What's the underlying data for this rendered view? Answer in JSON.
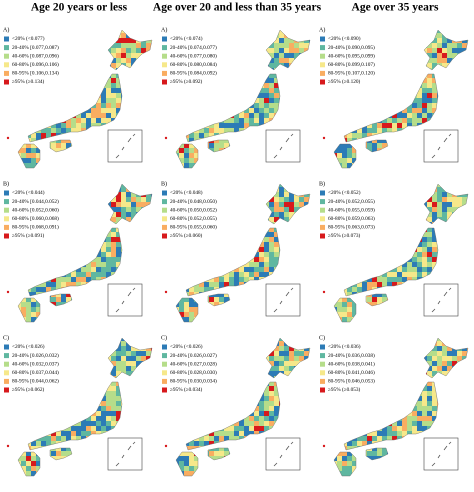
{
  "legend_colors": [
    "#2c7bb6",
    "#5fb7a0",
    "#b5dd8a",
    "#f6e88a",
    "#f9ad61",
    "#d7191c"
  ],
  "columns": [
    {
      "title": "Age 20 years or less",
      "panels": [
        {
          "label": "A)",
          "legend": [
            "<20% (<0.077)",
            "20-40% [0.077,0.087)",
            "40-60% [0.087,0.096)",
            "60-80% [0.096,0.106)",
            "80-95% [0.106,0.134)",
            "≥95% (≥0.134)"
          ]
        },
        {
          "label": "B)",
          "legend": [
            "<20% (<0.044)",
            "20-40% [0.044,0.052)",
            "40-60% [0.052,0.060)",
            "60-80% [0.060,0.068)",
            "80-95% [0.068,0.091)",
            "≥95% (≥0.091)"
          ]
        },
        {
          "label": "C)",
          "legend": [
            "<20% (<0.026)",
            "20-40% [0.026,0.032)",
            "40-60% [0.032,0.037)",
            "60-80% [0.037,0.044)",
            "80-95% [0.044,0.062)",
            "≥95% (≥0.062)"
          ]
        }
      ]
    },
    {
      "title": "Age over 20 and less than 35 years",
      "panels": [
        {
          "label": "A)",
          "legend": [
            "<20% (<0.074)",
            "20-40% [0.074,0.077)",
            "40-60% [0.077,0.080)",
            "60-80% [0.080,0.084)",
            "80-95% [0.084,0.092)",
            "≥95% (≥0.092)"
          ]
        },
        {
          "label": "B)",
          "legend": [
            "<20% (<0.048)",
            "20-40% [0.048,0.050)",
            "40-60% [0.050,0.052)",
            "60-80% [0.052,0.055)",
            "80-95% [0.055,0.060)",
            "≥95% (≥0.060)"
          ]
        },
        {
          "label": "C)",
          "legend": [
            "<20% (<0.026)",
            "20-40% [0.026,0.027)",
            "40-60% [0.027,0.028)",
            "60-80% [0.028,0.030)",
            "80-95% [0.030,0.034)",
            "≥95% (≥0.034)"
          ]
        }
      ]
    },
    {
      "title": "Age over 35 years",
      "panels": [
        {
          "label": "A)",
          "legend": [
            "<20% (<0.090)",
            "20-40% [0.090,0.095)",
            "40-60% [0.095,0.099)",
            "60-80% [0.099,0.107)",
            "80-95% [0.107,0.120)",
            "≥95% (≥0.120)"
          ]
        },
        {
          "label": "B)",
          "legend": [
            "<20% (<0.052)",
            "20-40% [0.052,0.055)",
            "40-60% [0.055,0.059)",
            "60-80% [0.059,0.063)",
            "80-95% [0.063,0.073)",
            "≥95% (≥0.073)"
          ]
        },
        {
          "label": "C)",
          "legend": [
            "<20% (<0.036)",
            "20-40% [0.036,0.038)",
            "40-60% [0.038,0.041)",
            "60-80% [0.041,0.046)",
            "80-95% [0.046,0.053)",
            "≥95% (≥0.053)"
          ]
        }
      ]
    }
  ]
}
